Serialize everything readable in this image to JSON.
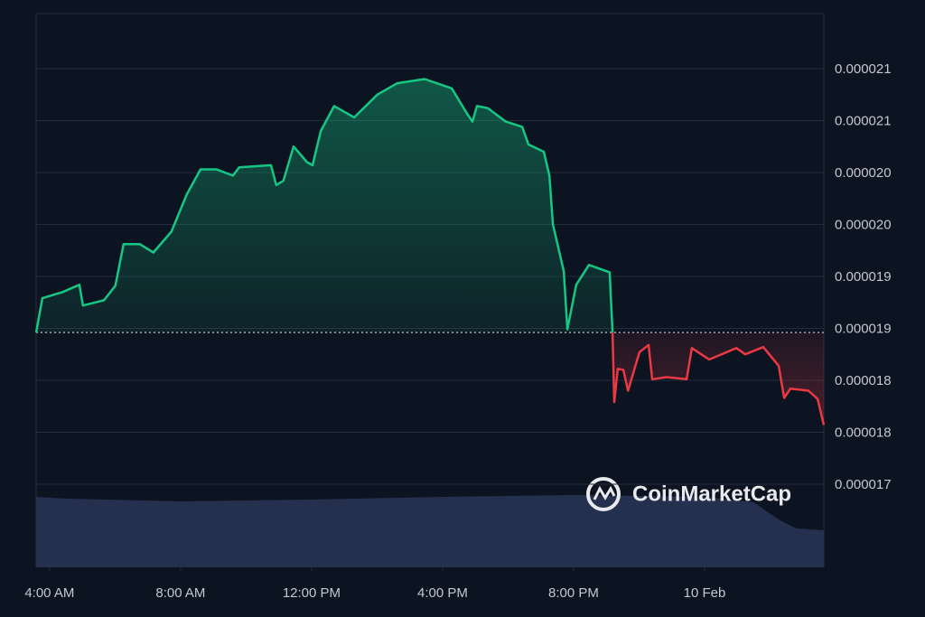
{
  "chart_data": {
    "type": "line",
    "watermark": "CoinMarketCap",
    "x": [
      3.59,
      3.78,
      4.41,
      4.91,
      5.02,
      5.66,
      6.01,
      6.26,
      6.76,
      7.17,
      7.72,
      8.19,
      8.61,
      9.1,
      9.6,
      9.79,
      10.76,
      10.92,
      11.14,
      11.45,
      11.86,
      12.03,
      12.28,
      12.69,
      13.3,
      14.01,
      14.62,
      15.45,
      16.28,
      16.74,
      16.91,
      17.05,
      17.38,
      17.93,
      18.43,
      18.62,
      19.09,
      19.26,
      19.37,
      19.7,
      19.81,
      20.08,
      20.47,
      21.1,
      21.19,
      21.24,
      21.35,
      21.52,
      21.66,
      22.01,
      22.29,
      22.4,
      22.84,
      23.45,
      23.61,
      24.14,
      24.97,
      25.24,
      25.79,
      26.26,
      26.43,
      26.62,
      27.17,
      27.45,
      27.64
    ],
    "series": [
      {
        "values": [
          1.846e-05,
          1.879e-05,
          1.885e-05,
          1.892e-05,
          1.872e-05,
          1.877e-05,
          1.891e-05,
          1.931e-05,
          1.931e-05,
          1.923e-05,
          1.943e-05,
          1.979e-05,
          2.003e-05,
          2.003e-05,
          1.997e-05,
          2.005e-05,
          2.007e-05,
          1.988e-05,
          1.992e-05,
          2.025e-05,
          2.01e-05,
          2.007e-05,
          2.04e-05,
          2.064e-05,
          2.053e-05,
          2.075e-05,
          2.086e-05,
          2.09e-05,
          2.081e-05,
          2.057e-05,
          2.049e-05,
          2.064e-05,
          2.062e-05,
          2.049e-05,
          2.044e-05,
          2.027e-05,
          2.02e-05,
          1.997e-05,
          1.95e-05,
          1.905e-05,
          1.849e-05,
          1.892e-05,
          1.911e-05,
          1.904e-05,
          1.846e-05,
          1.779e-05,
          1.811e-05,
          1.81e-05,
          1.79e-05,
          1.827e-05,
          1.834e-05,
          1.801e-05,
          1.803e-05,
          1.801e-05,
          1.831e-05,
          1.82e-05,
          1.831e-05,
          1.825e-05,
          1.832e-05,
          1.814e-05,
          1.783e-05,
          1.792e-05,
          1.79e-05,
          1.782e-05,
          1.757e-05
        ]
      }
    ],
    "baseline": 1.846e-05,
    "up_color": "#16c784",
    "down_color": "#ea3943",
    "volume": {
      "x": [
        3.59,
        4.5,
        8.0,
        12.0,
        16.0,
        20.0,
        24.0,
        25.5,
        26.3,
        26.8,
        27.64
      ],
      "values": [
        78,
        76,
        73,
        75,
        78,
        80,
        78,
        72,
        52,
        43,
        41
      ],
      "color": "#2a3556",
      "lim": [
        0,
        100
      ]
    },
    "xlim": [
      3.59,
      27.64
    ],
    "xticks": [
      {
        "value": 4,
        "label": "4:00 AM"
      },
      {
        "value": 8,
        "label": "8:00 AM"
      },
      {
        "value": 12,
        "label": "12:00 PM"
      },
      {
        "value": 16,
        "label": "4:00 PM"
      },
      {
        "value": 20,
        "label": "8:00 PM"
      },
      {
        "value": 24,
        "label": "10 Feb"
      }
    ],
    "ylim": [
      1.62e-05,
      2.153e-05
    ],
    "yticks": [
      {
        "value": 1.7e-05,
        "label": "0.000017"
      },
      {
        "value": 1.75e-05,
        "label": "0.000018"
      },
      {
        "value": 1.8e-05,
        "label": "0.000018"
      },
      {
        "value": 1.85e-05,
        "label": "0.000019"
      },
      {
        "value": 1.9e-05,
        "label": "0.000019"
      },
      {
        "value": 1.95e-05,
        "label": "0.000020"
      },
      {
        "value": 2e-05,
        "label": "0.000020"
      },
      {
        "value": 2.05e-05,
        "label": "0.000021"
      },
      {
        "value": 2.1e-05,
        "label": "0.000021"
      }
    ],
    "grid": true
  }
}
